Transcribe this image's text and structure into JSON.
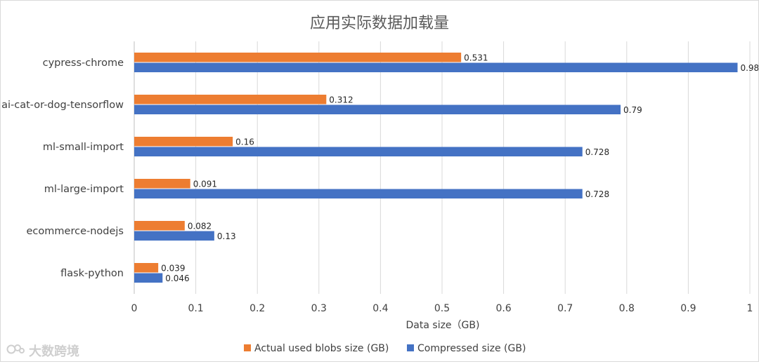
{
  "chart_data": {
    "type": "bar",
    "orientation": "horizontal",
    "title": "应用实际数据加载量",
    "xlabel": "Data size（GB)",
    "ylabel": "",
    "xlim": [
      0,
      1
    ],
    "xticks": [
      0,
      0.1,
      0.2,
      0.3,
      0.4,
      0.5,
      0.6,
      0.7,
      0.8,
      0.9,
      1
    ],
    "xtick_labels": [
      "0",
      "0.1",
      "0.2",
      "0.3",
      "0.4",
      "0.5",
      "0.6",
      "0.7",
      "0.8",
      "0.9",
      "1"
    ],
    "grid": true,
    "legend_position": "bottom",
    "categories": [
      "cypress-chrome",
      "ai-cat-or-dog-tensorflow",
      "ml-small-import",
      "ml-large-import",
      "ecommerce-nodejs",
      "flask-python"
    ],
    "series": [
      {
        "name": "Actual used blobs size (GB)",
        "color": "#ED7D31",
        "values": [
          0.531,
          0.312,
          0.16,
          0.091,
          0.082,
          0.039
        ],
        "labels": [
          "0.531",
          "0.312",
          "0.16",
          "0.091",
          "0.082",
          "0.039"
        ]
      },
      {
        "name": "Compressed size (GB)",
        "color": "#4472C4",
        "values": [
          0.98,
          0.79,
          0.728,
          0.728,
          0.13,
          0.046
        ],
        "labels": [
          "0.98",
          "0.79",
          "0.728",
          "0.728",
          "0.13",
          "0.046"
        ]
      }
    ]
  },
  "watermark": {
    "text": "大数跨境",
    "icon": "logo-icon"
  }
}
